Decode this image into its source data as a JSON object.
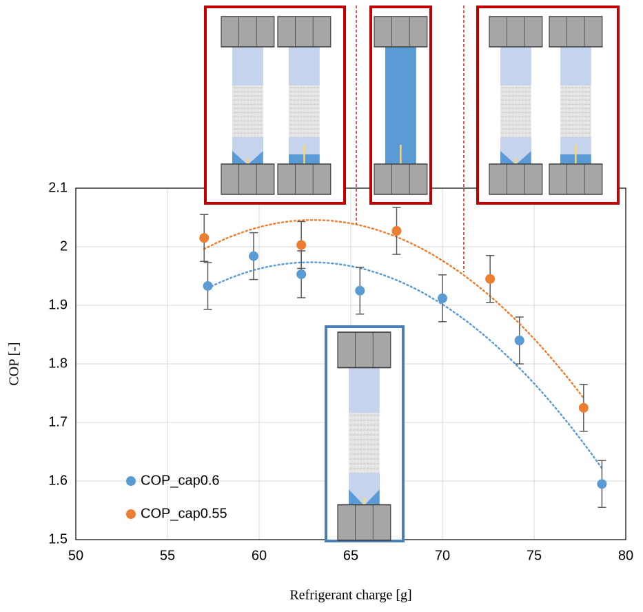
{
  "chart_data": {
    "type": "scatter",
    "x_label": "Refrigerant charge [g]",
    "y_label": "COP [-]",
    "xlim": [
      50,
      80
    ],
    "xticks": [
      50,
      55,
      60,
      65,
      70,
      75,
      80
    ],
    "ylim": [
      1.5,
      2.1
    ],
    "yticks": [
      1.5,
      1.6,
      1.7,
      1.8,
      1.9,
      2,
      2.1
    ],
    "grid": true,
    "trendline": "poly2",
    "legend": "lower left",
    "series": [
      {
        "name": "COP_cap0.6",
        "color": "#5b9bd5",
        "x": [
          57.2,
          59.7,
          62.3,
          65.5,
          70.0,
          74.2,
          78.7
        ],
        "values": [
          1.933,
          1.984,
          1.953,
          1.925,
          1.912,
          1.84,
          1.595
        ],
        "errors": [
          0.04,
          0.04,
          0.04,
          0.04,
          0.04,
          0.04,
          0.04
        ]
      },
      {
        "name": "COP_cap0.55",
        "color": "#ed7d31",
        "x": [
          57.0,
          62.3,
          67.5,
          72.6,
          77.7
        ],
        "values": [
          2.015,
          2.003,
          2.027,
          1.945,
          1.725
        ],
        "errors": [
          0.04,
          0.04,
          0.04,
          0.04,
          0.04
        ]
      }
    ]
  }
}
